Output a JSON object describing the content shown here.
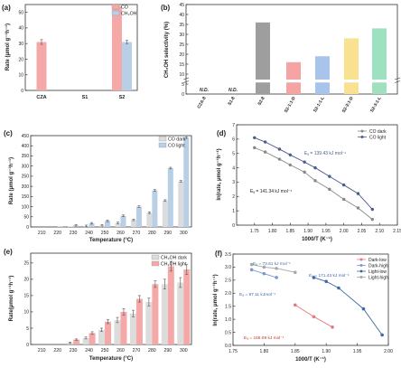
{
  "colors": {
    "co": "#f4a9a8",
    "ch3oh": "#b9cfe6",
    "dark": "#dcdcdc",
    "s2_8": "#9e9e9e",
    "s2_1_1_d": "#f5a3a3",
    "s2_1_1_l": "#a9c4ea",
    "s2_3_1_d": "#f9e191",
    "s2_3_1_l": "#9ee0bf",
    "co_dark_line": "#888888",
    "co_light_line": "#4a5b8c",
    "dark_low": "#e8787c",
    "dark_high": "#7f97cf",
    "light_low": "#3f6aa8",
    "light_high": "#a8a8a8",
    "error": "#555555"
  },
  "chart_data": [
    {
      "panel": "(a)",
      "type": "bar",
      "categories": [
        "CZA",
        "S1",
        "S2"
      ],
      "series": [
        {
          "name": "CO",
          "values": [
            31,
            null,
            54
          ],
          "errors": [
            1.5,
            null,
            1
          ]
        },
        {
          "name": "CH₃OH",
          "values": [
            null,
            null,
            31
          ],
          "errors": [
            null,
            null,
            1
          ]
        }
      ],
      "ylabel": "Rate (μmol g⁻¹h⁻¹)",
      "ylim": [
        0,
        55
      ],
      "yticks": [
        "0",
        "10",
        "20",
        "30",
        "40",
        "50"
      ],
      "legend": "top-right"
    },
    {
      "panel": "(b)",
      "type": "bar",
      "categories": [
        "CZA-8",
        "S1-8",
        "S2-8",
        "S2-1:1-D",
        "S2-1:1-L",
        "S2-3:1-D",
        "S2-3:1-L"
      ],
      "values": [
        null,
        null,
        36,
        16,
        19,
        28,
        33
      ],
      "ylabel": "CH₃OH selectivity (%)",
      "ylim": [
        0,
        45
      ],
      "yticks": [
        "0",
        "5",
        "10",
        "15",
        "20",
        "25",
        "30",
        "35",
        "40",
        "45"
      ],
      "annotations": [
        "N.D.",
        "N.D."
      ],
      "axis_break": true
    },
    {
      "panel": "(c)",
      "type": "bar",
      "x": [
        "210",
        "220",
        "230",
        "240",
        "250",
        "260",
        "270",
        "280",
        "290",
        "300"
      ],
      "series": [
        {
          "name": "CO dark",
          "values": [
            0,
            0,
            2,
            5,
            8,
            20,
            35,
            70,
            130,
            225
          ]
        },
        {
          "name": "CO light",
          "values": [
            0,
            3,
            8,
            18,
            30,
            55,
            100,
            180,
            290,
            440
          ]
        }
      ],
      "xlabel": "Temperature (°C)",
      "ylabel": "Rate (μmol g⁻¹h⁻¹)",
      "ylim": [
        0,
        450
      ],
      "yticks": [
        "0",
        "50",
        "100",
        "150",
        "200",
        "250",
        "300",
        "350",
        "400",
        "450"
      ],
      "legend": "top-right"
    },
    {
      "panel": "(d)",
      "type": "scatter",
      "series": [
        {
          "name": "CO dark",
          "x": [
            1.75,
            1.78,
            1.82,
            1.85,
            1.89,
            1.92,
            1.96,
            2.0,
            2.04,
            2.08
          ],
          "y": [
            5.4,
            5.1,
            4.6,
            4.2,
            3.7,
            3.1,
            2.5,
            1.8,
            1.2,
            0.4
          ]
        },
        {
          "name": "CO light",
          "x": [
            1.75,
            1.78,
            1.82,
            1.85,
            1.89,
            1.92,
            1.96,
            2.0,
            2.04,
            2.08
          ],
          "y": [
            6.1,
            5.8,
            5.3,
            4.9,
            4.4,
            4.0,
            3.4,
            2.8,
            2.2,
            1.1
          ]
        }
      ],
      "annotations": [
        "Eₐ = 139.43 kJ mol⁻¹",
        "Eₐ = 141.34 kJ mol⁻¹"
      ],
      "xlabel": "1000/T (K⁻¹)",
      "ylabel": "ln(rate, μmol g⁻¹h⁻¹)",
      "xlim": [
        1.7,
        2.15
      ],
      "ylim": [
        0,
        7
      ],
      "xticks": [
        "1.75",
        "1.80",
        "1.85",
        "1.90",
        "1.95",
        "2.00",
        "2.05",
        "2.10",
        "2.15"
      ],
      "yticks": [
        "0",
        "1",
        "2",
        "3",
        "4",
        "5",
        "6",
        "7"
      ],
      "legend": "top-right"
    },
    {
      "panel": "(e)",
      "type": "bar",
      "x": [
        "210",
        "220",
        "230",
        "240",
        "250",
        "260",
        "270",
        "280",
        "290",
        "300"
      ],
      "series": [
        {
          "name": "CH₃OH dark",
          "values": [
            0,
            0,
            0.5,
            2,
            4.5,
            7.5,
            9.5,
            13,
            18.5,
            19
          ],
          "errors": [
            0,
            0,
            0.2,
            0.3,
            0.5,
            0.8,
            1,
            1.2,
            1.5,
            1.5
          ]
        },
        {
          "name": "CH₃OH light",
          "values": [
            0,
            0,
            1.5,
            3.5,
            7,
            10,
            14,
            18.5,
            24,
            23
          ],
          "errors": [
            0,
            0,
            0.2,
            0.4,
            0.6,
            1,
            1,
            1,
            1.5,
            1.5
          ]
        }
      ],
      "xlabel": "Temperature (°C)",
      "ylabel": "Rate(μmol g⁻¹h⁻¹)",
      "ylim": [
        0,
        28
      ],
      "yticks": [
        "0",
        "5",
        "10",
        "15",
        "20",
        "25"
      ],
      "legend": "top-right"
    },
    {
      "panel": "(f)",
      "type": "line",
      "series": [
        {
          "name": "Dark-low",
          "x": [
            1.85,
            1.88,
            1.91
          ],
          "y": [
            1.55,
            1.1,
            0.7
          ]
        },
        {
          "name": "Dark-high",
          "x": [
            1.78,
            1.8,
            1.82
          ],
          "y": [
            2.9,
            2.75,
            2.6
          ]
        },
        {
          "name": "Light-low",
          "x": [
            1.88,
            1.9,
            1.92,
            1.96,
            1.99
          ],
          "y": [
            2.6,
            2.45,
            2.2,
            1.4,
            0.4
          ]
        },
        {
          "name": "Light-high",
          "x": [
            1.78,
            1.8,
            1.82,
            1.85
          ],
          "y": [
            3.1,
            3.0,
            2.95,
            2.8
          ]
        }
      ],
      "annotations": [
        "Eₐ = 73.61 kJ mol⁻¹",
        "Eₐ = 171.43 kJ mol⁻¹",
        "Eₐ = 97.11 kJmol⁻¹",
        "Eₐ = 168.09 kJ mol⁻¹"
      ],
      "xlabel": "1000/T (K⁻¹)",
      "ylabel": "ln(rate, μmol g⁻¹h⁻¹)",
      "xlim": [
        1.75,
        2.0
      ],
      "ylim": [
        0,
        3.5
      ],
      "xticks": [
        "1.75",
        "1.80",
        "1.85",
        "1.90",
        "1.95",
        "2.00"
      ],
      "yticks": [
        "0.0",
        "0.5",
        "1.0",
        "1.5",
        "2.0",
        "2.5",
        "3.0",
        "3.5"
      ],
      "legend": "top-right"
    }
  ]
}
